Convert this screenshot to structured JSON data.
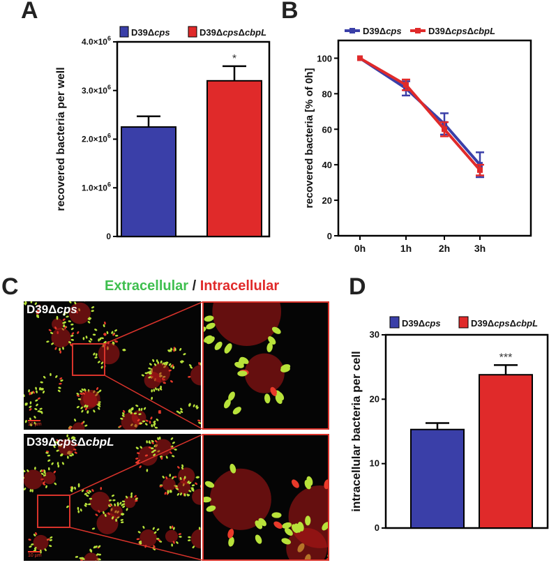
{
  "panels": {
    "a": "A",
    "b": "B",
    "c": "C",
    "d": "D"
  },
  "legend": {
    "strain1_prefix": "D39Δ",
    "strain1_italic": "cps",
    "strain2_prefix": "D39Δ",
    "strain2_italic1": "cps",
    "strain2_mid": "Δ",
    "strain2_italic2": "cbpL"
  },
  "colors": {
    "blue": "#3a3fa8",
    "red": "#e02a2a",
    "green": "#3fbf4f"
  },
  "chart_data": [
    {
      "id": "A",
      "type": "bar",
      "ylabel": "recovered bacteria per well",
      "ylim": [
        0,
        4000000
      ],
      "yticks": [
        {
          "v": 0,
          "mant": "0",
          "exp": ""
        },
        {
          "v": 1000000,
          "mant": "1.0×10",
          "exp": "6"
        },
        {
          "v": 2000000,
          "mant": "2.0×10",
          "exp": "6"
        },
        {
          "v": 3000000,
          "mant": "3.0×10",
          "exp": "6"
        },
        {
          "v": 4000000,
          "mant": "4.0×10",
          "exp": "6"
        }
      ],
      "series": [
        {
          "name": "D39Δcps",
          "value": 2250000,
          "error": 220000,
          "color": "#3a3fa8"
        },
        {
          "name": "D39ΔcpsΔcbpL",
          "value": 3200000,
          "error": 300000,
          "color": "#e02a2a"
        }
      ],
      "annotation": "*"
    },
    {
      "id": "B",
      "type": "line",
      "ylabel": "recovered bacteria [% of 0h]",
      "categories": [
        "0h",
        "1h",
        "2h",
        "3h"
      ],
      "ylim": [
        0,
        110
      ],
      "yticks": [
        0,
        20,
        40,
        60,
        80,
        100
      ],
      "series": [
        {
          "name": "D39Δcps",
          "values": [
            100,
            83,
            63,
            40
          ],
          "errors": [
            0,
            4,
            6,
            7
          ],
          "color": "#3a3fa8"
        },
        {
          "name": "D39ΔcpsΔcbpL",
          "values": [
            100,
            85,
            60,
            37
          ],
          "errors": [
            0,
            3,
            4,
            3
          ],
          "color": "#e02a2a"
        }
      ]
    },
    {
      "id": "D",
      "type": "bar",
      "ylabel": "intracellular bacteria per cell",
      "ylim": [
        0,
        30
      ],
      "yticks": [
        {
          "v": 0,
          "mant": "0",
          "exp": ""
        },
        {
          "v": 10,
          "mant": "10",
          "exp": ""
        },
        {
          "v": 20,
          "mant": "20",
          "exp": ""
        },
        {
          "v": 30,
          "mant": "30",
          "exp": ""
        }
      ],
      "series": [
        {
          "name": "D39Δcps",
          "value": 15.3,
          "error": 1.0,
          "color": "#3a3fa8"
        },
        {
          "name": "D39ΔcpsΔcbpL",
          "value": 23.8,
          "error": 1.5,
          "color": "#e02a2a"
        }
      ],
      "annotation": "***"
    }
  ],
  "panel_c": {
    "heading_extra": "Extracellular",
    "heading_sep": " / ",
    "heading_intra": "Intracellular",
    "scale_text": "10 µm"
  }
}
